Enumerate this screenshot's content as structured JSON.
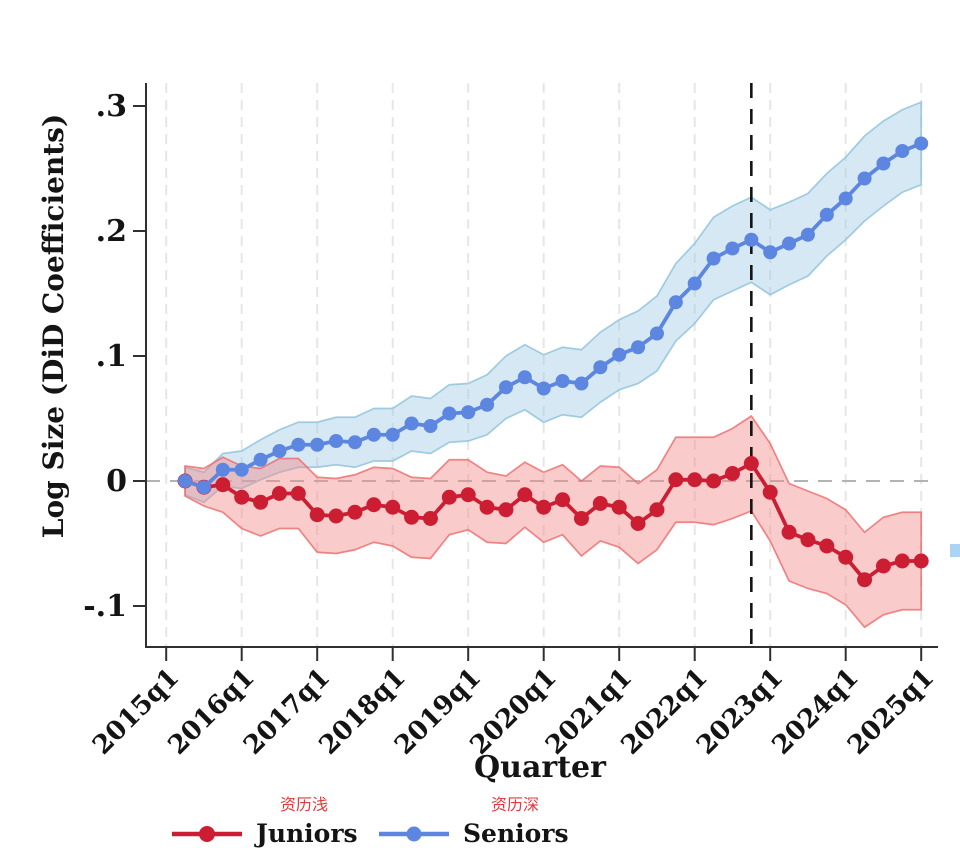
{
  "chart_data": {
    "type": "line",
    "title": "",
    "xlabel": "Quarter",
    "ylabel": "Log Size (DiD Coefficients)",
    "x_tick_labels": [
      "2015q1",
      "2016q1",
      "2017q1",
      "2018q1",
      "2019q1",
      "2020q1",
      "2021q1",
      "2022q1",
      "2023q1",
      "2024q1",
      "2025q1"
    ],
    "y_ticks": {
      "labels": [
        ".3",
        ".2",
        ".1",
        "0",
        "-.1"
      ],
      "values": [
        0.3,
        0.2,
        0.1,
        0,
        -0.1
      ]
    },
    "ylim": [
      -0.132,
      0.318
    ],
    "grid": "vertical-dashed",
    "zero_line": true,
    "treatment_line_at": "2022q4",
    "legend_position": "bottom",
    "quarters": [
      "2015q2",
      "2015q3",
      "2015q4",
      "2016q1",
      "2016q2",
      "2016q3",
      "2016q4",
      "2017q1",
      "2017q2",
      "2017q3",
      "2017q4",
      "2018q1",
      "2018q2",
      "2018q3",
      "2018q4",
      "2019q1",
      "2019q2",
      "2019q3",
      "2019q4",
      "2020q1",
      "2020q2",
      "2020q3",
      "2020q4",
      "2021q1",
      "2021q2",
      "2021q3",
      "2021q4",
      "2022q1",
      "2022q2",
      "2022q3",
      "2022q4",
      "2023q1",
      "2023q2",
      "2023q3",
      "2023q4",
      "2024q1",
      "2024q2",
      "2024q3",
      "2024q4",
      "2025q1"
    ],
    "series": [
      {
        "name": "Juniors",
        "color": "#cc1e32",
        "band_fill": "rgba(242,139,139,0.45)",
        "band_edge": "rgba(238,105,105,0.8)",
        "marker_radius": 7.5,
        "values": [
          0.0,
          -0.005,
          -0.003,
          -0.013,
          -0.017,
          -0.01,
          -0.01,
          -0.027,
          -0.028,
          -0.025,
          -0.019,
          -0.021,
          -0.029,
          -0.03,
          -0.013,
          -0.011,
          -0.021,
          -0.023,
          -0.011,
          -0.021,
          -0.015,
          -0.03,
          -0.018,
          -0.021,
          -0.034,
          -0.023,
          0.001,
          0.001,
          0.0,
          0.006,
          0.014,
          -0.009,
          -0.041,
          -0.047,
          -0.052,
          -0.061,
          -0.079,
          -0.068,
          -0.064,
          -0.064
        ],
        "upper": [
          0.012,
          0.01,
          0.019,
          0.012,
          0.01,
          0.018,
          0.018,
          0.003,
          0.002,
          0.005,
          0.011,
          0.01,
          0.003,
          0.002,
          0.017,
          0.017,
          0.007,
          0.004,
          0.015,
          0.007,
          0.013,
          0.0,
          0.012,
          0.011,
          -0.002,
          0.009,
          0.035,
          0.035,
          0.035,
          0.042,
          0.052,
          0.03,
          -0.002,
          -0.008,
          -0.014,
          -0.023,
          -0.041,
          -0.029,
          -0.025,
          -0.025
        ],
        "lower": [
          -0.012,
          -0.02,
          -0.025,
          -0.038,
          -0.044,
          -0.038,
          -0.038,
          -0.057,
          -0.058,
          -0.055,
          -0.049,
          -0.052,
          -0.061,
          -0.062,
          -0.043,
          -0.039,
          -0.049,
          -0.05,
          -0.037,
          -0.049,
          -0.043,
          -0.06,
          -0.048,
          -0.053,
          -0.066,
          -0.055,
          -0.033,
          -0.033,
          -0.035,
          -0.03,
          -0.024,
          -0.048,
          -0.08,
          -0.086,
          -0.09,
          -0.099,
          -0.117,
          -0.107,
          -0.103,
          -0.103
        ]
      },
      {
        "name": "Seniors",
        "color": "#5c86e0",
        "band_fill": "rgba(158,201,226,0.42)",
        "band_edge": "rgba(150,198,222,0.9)",
        "marker_radius": 7,
        "values": [
          0.0,
          -0.005,
          0.009,
          0.009,
          0.017,
          0.024,
          0.029,
          0.029,
          0.032,
          0.031,
          0.037,
          0.037,
          0.046,
          0.044,
          0.054,
          0.055,
          0.061,
          0.075,
          0.083,
          0.074,
          0.08,
          0.078,
          0.091,
          0.101,
          0.107,
          0.118,
          0.143,
          0.158,
          0.178,
          0.186,
          0.193,
          0.183,
          0.19,
          0.197,
          0.213,
          0.226,
          0.242,
          0.254,
          0.264,
          0.27
        ],
        "upper": [
          0.011,
          0.007,
          0.022,
          0.024,
          0.033,
          0.041,
          0.047,
          0.047,
          0.051,
          0.051,
          0.058,
          0.058,
          0.068,
          0.066,
          0.077,
          0.078,
          0.085,
          0.1,
          0.109,
          0.101,
          0.107,
          0.105,
          0.119,
          0.129,
          0.136,
          0.148,
          0.174,
          0.19,
          0.211,
          0.22,
          0.227,
          0.217,
          0.223,
          0.23,
          0.246,
          0.259,
          0.276,
          0.288,
          0.297,
          0.303
        ],
        "lower": [
          -0.011,
          -0.017,
          -0.004,
          -0.006,
          0.001,
          0.007,
          0.011,
          0.011,
          0.013,
          0.011,
          0.016,
          0.016,
          0.024,
          0.022,
          0.031,
          0.032,
          0.037,
          0.05,
          0.057,
          0.047,
          0.053,
          0.051,
          0.063,
          0.073,
          0.078,
          0.088,
          0.112,
          0.126,
          0.145,
          0.152,
          0.159,
          0.149,
          0.157,
          0.164,
          0.18,
          0.193,
          0.208,
          0.22,
          0.231,
          0.237
        ]
      }
    ],
    "colors": {
      "grid": "#e6e6e6",
      "zero_line": "#b3b3b3",
      "treatment_line": "#141414",
      "axis": "#303030",
      "annotation_red": "#e0393e",
      "artifact_blue": "#abd4f2"
    }
  },
  "legend": {
    "items": [
      {
        "label": "Juniors",
        "annotation": "资历浅",
        "color": "#cc1e32"
      },
      {
        "label": "Seniors",
        "annotation": "资历深",
        "color": "#5c86e0"
      }
    ]
  }
}
